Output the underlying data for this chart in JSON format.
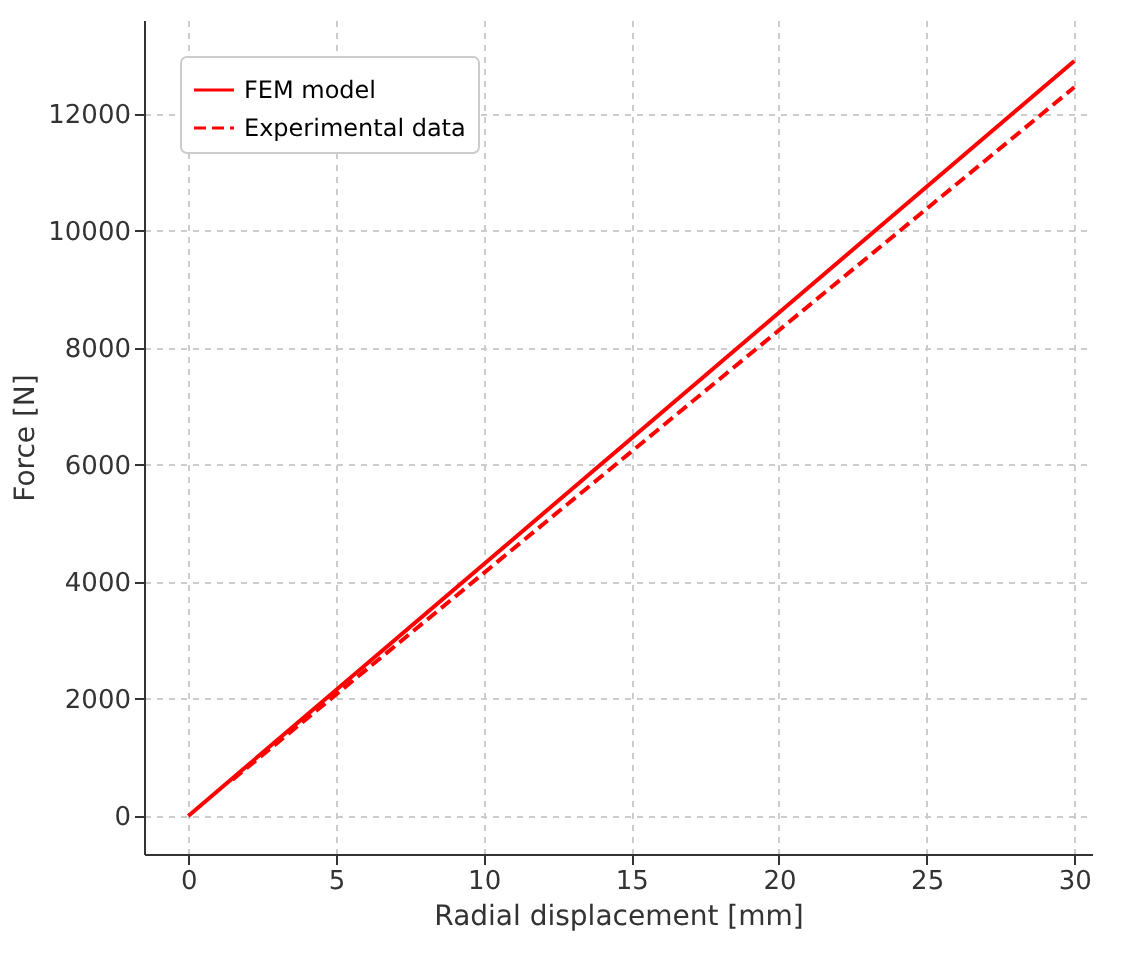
{
  "chart_data": {
    "type": "line",
    "xlabel": "Radial displacement [mm]",
    "ylabel": "Force [N]",
    "xlim": [
      -1.5,
      30.6
    ],
    "ylim": [
      -650,
      13600
    ],
    "xticks": [
      0,
      5,
      10,
      15,
      20,
      25,
      30
    ],
    "yticks": [
      0,
      2000,
      4000,
      6000,
      8000,
      10000,
      12000
    ],
    "grid": true,
    "legend": "top left",
    "series": [
      {
        "name": "FEM model",
        "color": "#ff0000",
        "x": [
          0,
          30
        ],
        "values": [
          0,
          12900
        ],
        "line_style": "solid"
      },
      {
        "name": "Experimental data",
        "color": "#ff0000",
        "x": [
          1.5,
          30
        ],
        "values": [
          620,
          12450
        ],
        "line_style": "dashed"
      }
    ]
  }
}
